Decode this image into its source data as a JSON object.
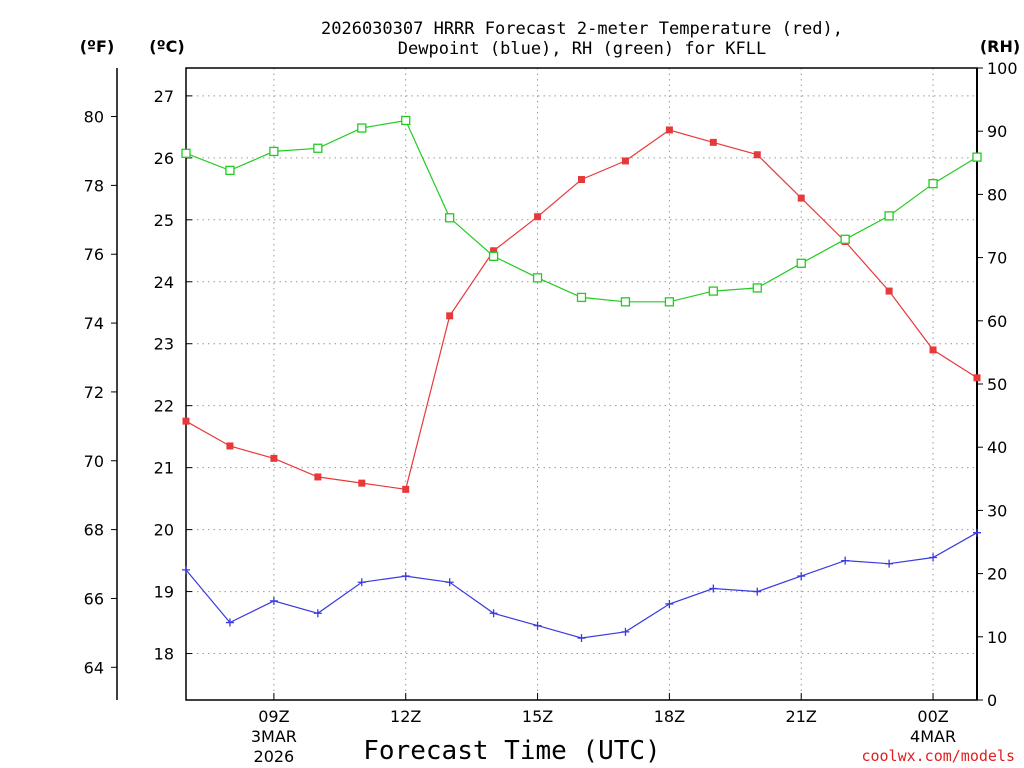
{
  "chart_data": {
    "type": "line",
    "title_line1": "2026030307 HRRR Forecast 2-meter Temperature (red),",
    "title_line2": "Dewpoint (blue), RH (green) for KFLL",
    "xlabel": "Forecast Time (UTC)",
    "credit": "coolwx.com/models",
    "units": {
      "fahrenheit": "(ºF)",
      "celsius": "(ºC)",
      "rh": "(RH)"
    },
    "x_range": [
      7,
      25
    ],
    "x_ticks": [
      {
        "x": 9,
        "label": "09Z",
        "sub1": "3MAR",
        "sub2": "2026"
      },
      {
        "x": 12,
        "label": "12Z",
        "sub1": "",
        "sub2": ""
      },
      {
        "x": 15,
        "label": "15Z",
        "sub1": "",
        "sub2": ""
      },
      {
        "x": 18,
        "label": "18Z",
        "sub1": "",
        "sub2": ""
      },
      {
        "x": 21,
        "label": "21Z",
        "sub1": "",
        "sub2": ""
      },
      {
        "x": 24,
        "label": "00Z",
        "sub1": "4MAR",
        "sub2": ""
      }
    ],
    "celsius_axis": {
      "range": [
        17.25,
        27.45
      ],
      "ticks": [
        18,
        19,
        20,
        21,
        22,
        23,
        24,
        25,
        26,
        27
      ]
    },
    "fahrenheit_axis": {
      "ticks": [
        64,
        66,
        68,
        70,
        72,
        74,
        76,
        78,
        80
      ]
    },
    "rh_axis": {
      "range": [
        0,
        100
      ],
      "ticks": [
        0,
        10,
        20,
        30,
        40,
        50,
        60,
        70,
        80,
        90,
        100
      ]
    },
    "x": [
      7,
      8,
      9,
      10,
      11,
      12,
      13,
      14,
      15,
      16,
      17,
      18,
      19,
      20,
      21,
      22,
      23,
      24,
      25
    ],
    "series": [
      {
        "name": "Temperature",
        "axis": "celsius",
        "color": "#e8393a",
        "marker": "filled-square",
        "values": [
          21.75,
          21.35,
          21.15,
          20.85,
          20.75,
          20.65,
          23.45,
          24.5,
          25.05,
          25.65,
          25.95,
          26.45,
          26.25,
          26.05,
          25.35,
          24.65,
          23.85,
          22.9,
          22.45
        ]
      },
      {
        "name": "Dewpoint",
        "axis": "celsius",
        "color": "#3a3ae0",
        "marker": "plus",
        "values": [
          19.35,
          18.5,
          18.85,
          18.65,
          19.15,
          19.25,
          19.15,
          18.65,
          18.45,
          18.25,
          18.35,
          18.8,
          19.05,
          19.0,
          19.25,
          19.5,
          19.45,
          19.55,
          19.95
        ]
      },
      {
        "name": "RH",
        "axis": "rh",
        "color": "#22cc22",
        "marker": "open-square",
        "values": [
          86.5,
          83.8,
          86.8,
          87.3,
          90.5,
          91.7,
          76.3,
          70.2,
          66.8,
          63.7,
          63.0,
          63.0,
          64.7,
          65.2,
          69.1,
          72.9,
          76.6,
          81.7,
          85.9
        ]
      }
    ]
  }
}
